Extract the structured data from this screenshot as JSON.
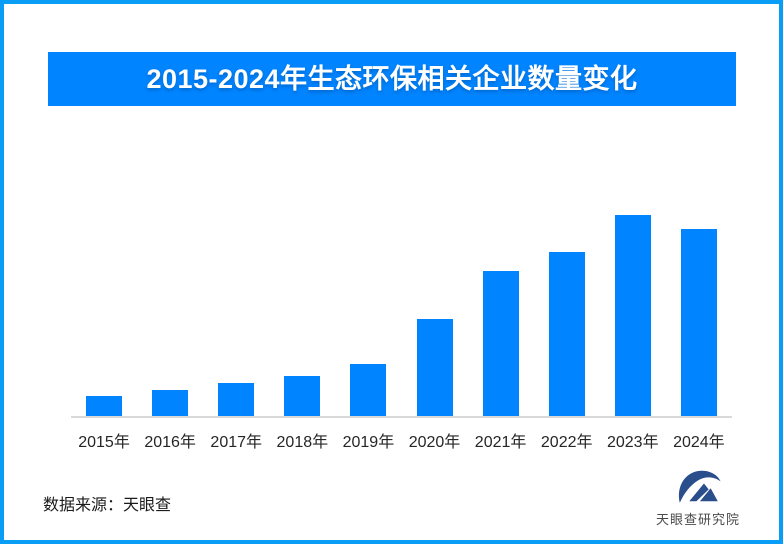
{
  "page": {
    "background_color": "#ffffff",
    "border_color": "#0a9df6"
  },
  "title_banner": {
    "text": "2015-2024年生态环保相关企业数量变化",
    "bg_color": "#0084ff",
    "text_color": "#ffffff"
  },
  "chart_data": {
    "type": "bar",
    "title": "2015-2024年生态环保相关企业数量变化",
    "categories": [
      "2015年",
      "2016年",
      "2017年",
      "2018年",
      "2019年",
      "2020年",
      "2021年",
      "2022年",
      "2023年",
      "2024年"
    ],
    "values": [
      21,
      27,
      34,
      41,
      53,
      98,
      146,
      165,
      202,
      188
    ],
    "values_note": "relative heights; no numeric axis labels shown in image",
    "xlabel": "",
    "ylabel": "",
    "ylim": [
      0,
      203
    ],
    "grid": false,
    "legend_position": "none",
    "bar_color": "#0084ff",
    "axis_line_color": "#d9d9d9",
    "tick_label_color": "#262626"
  },
  "footer": {
    "source_text": "数据来源：天眼查",
    "logo": {
      "icon": "tianyancha-eye-logo",
      "text": "天眼查研究院",
      "icon_color": "#2a4d8c",
      "text_color": "#4a4a4a"
    }
  }
}
